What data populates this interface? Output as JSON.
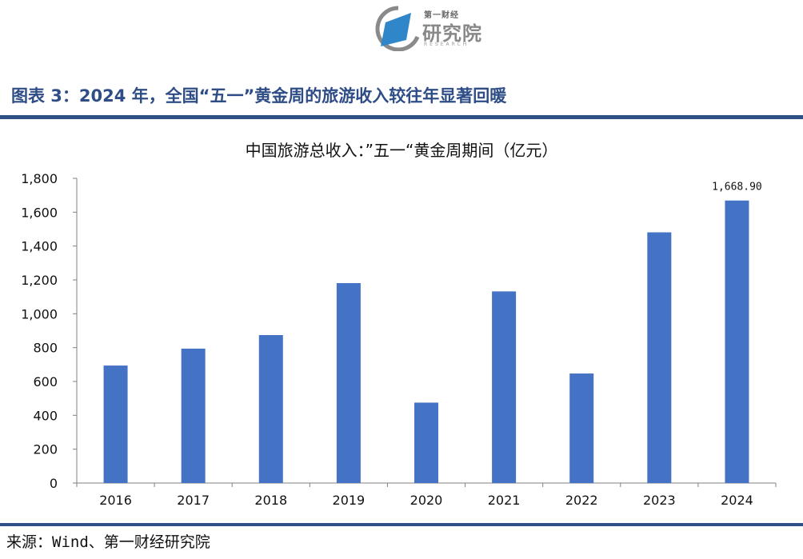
{
  "logo": {
    "top_text": "第一财经",
    "main_text": "研究院",
    "sub_text": "RESEARCH"
  },
  "figure_title": "图表 3：2024 年，全国“五一”黄金周的旅游收入较往年显著回暖",
  "source": "来源：Wind、第一财经研究院",
  "colors": {
    "bar": "#4472c4",
    "title": "#2e4d86",
    "rule": "#2f5087"
  },
  "chart_data": {
    "type": "bar",
    "title": "中国旅游总收入：”五一“黄金周期间（亿元）",
    "xlabel": "",
    "ylabel": "",
    "categories": [
      "2016",
      "2017",
      "2018",
      "2019",
      "2020",
      "2021",
      "2022",
      "2023",
      "2024"
    ],
    "values": [
      694,
      794,
      874,
      1181,
      475,
      1132,
      647,
      1481,
      1668.9
    ],
    "ylim": [
      0,
      1800
    ],
    "yticks": [
      "0",
      "200",
      "400",
      "600",
      "800",
      "1,000",
      "1,200",
      "1,400",
      "1,600",
      "1,800"
    ],
    "data_labels": [
      {
        "category": "2024",
        "text": "1,668.90"
      }
    ],
    "grid": false,
    "legend": null
  }
}
